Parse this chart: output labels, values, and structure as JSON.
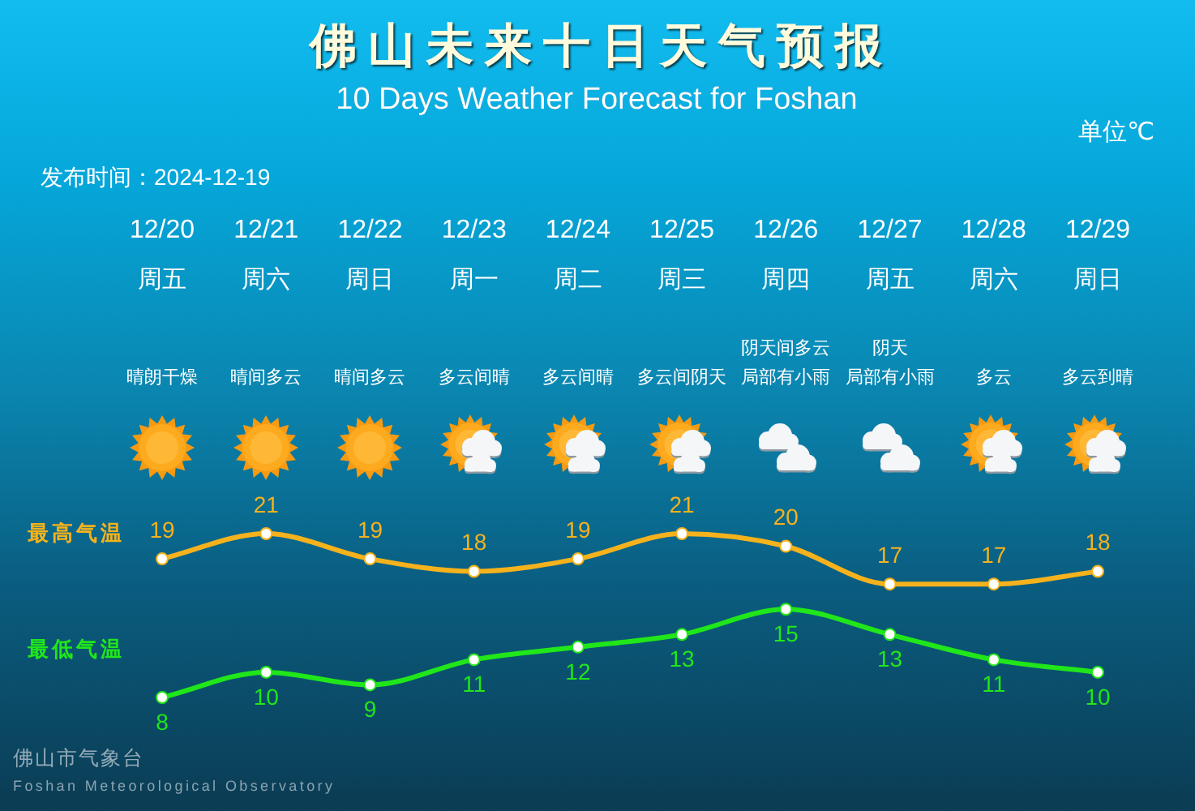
{
  "chart_data": {
    "type": "line",
    "title": "佛山未来十日天气预报",
    "subtitle": "10 Days Weather Forecast for Foshan",
    "categories": [
      "12/20",
      "12/21",
      "12/22",
      "12/23",
      "12/24",
      "12/25",
      "12/26",
      "12/27",
      "12/28",
      "12/29"
    ],
    "series": [
      {
        "name": "最高气温",
        "color": "#f5b21c",
        "values": [
          19,
          21,
          19,
          18,
          19,
          21,
          20,
          17,
          17,
          18
        ]
      },
      {
        "name": "最低气温",
        "color": "#20e61a",
        "values": [
          8,
          10,
          9,
          11,
          12,
          13,
          15,
          13,
          11,
          10
        ]
      }
    ],
    "data_labels": true,
    "marker": "circle",
    "legend": false,
    "tick_labels": "x",
    "annotations": [
      "单位℃",
      "发布时间：2024-12-19",
      "佛山市气象台",
      "Foshan Meteorological Observatory",
      "周五",
      "周六",
      "周日",
      "周一",
      "周二",
      "周三",
      "周四",
      "周五",
      "周六",
      "周日",
      "晴朗干燥",
      "晴间多云",
      "晴间多云",
      "多云间晴",
      "多云间晴",
      "多云间阴天",
      "阴天间多云局部有小雨",
      "阴天局部有小雨",
      "多云",
      "多云到晴"
    ]
  }
}
